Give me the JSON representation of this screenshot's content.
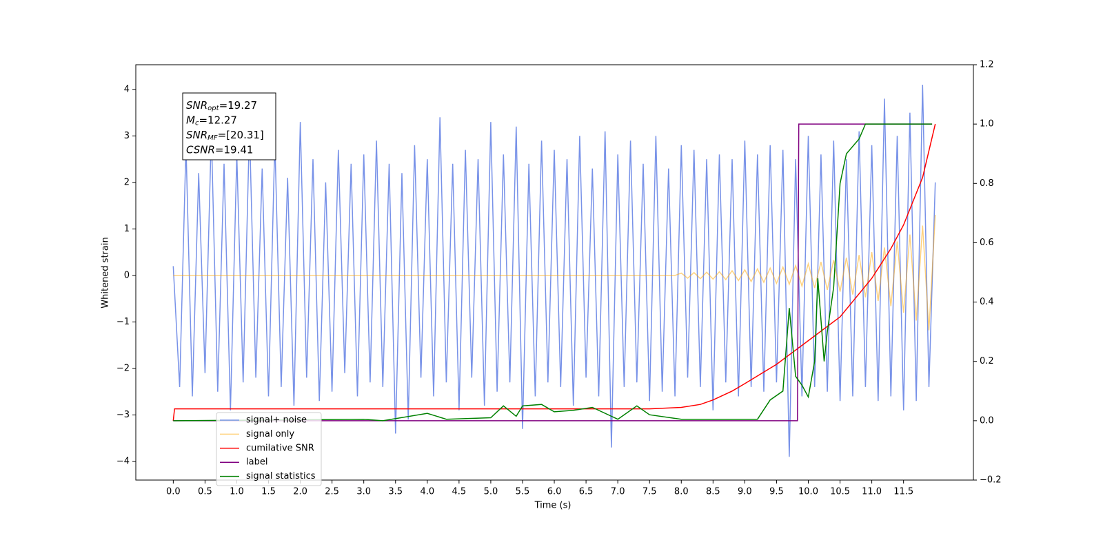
{
  "chart_data": {
    "type": "line",
    "xlabel": "Time (s)",
    "ylabel": "Whitened strain",
    "xlim": [
      -0.59,
      12.6
    ],
    "ylim": [
      -4.4,
      4.53
    ],
    "y2lim": [
      -0.2,
      1.2
    ],
    "xticks": [
      {
        "value": 0,
        "label": "0.0"
      },
      0.5,
      {
        "value": 1,
        "label": "1.0"
      },
      1.5,
      {
        "value": 2,
        "label": "2.0"
      },
      2.5,
      {
        "value": 3,
        "label": "3.0"
      },
      3.5,
      {
        "value": 4,
        "label": "4.0"
      },
      4.5,
      {
        "value": 5,
        "label": "5.0"
      },
      5.5,
      {
        "value": 6,
        "label": "6.0"
      },
      6.5,
      {
        "value": 7,
        "label": "7.0"
      },
      7.5,
      {
        "value": 8,
        "label": "8.0"
      },
      8.5,
      {
        "value": 9,
        "label": "9.0"
      },
      9.5,
      {
        "value": 10,
        "label": "10.0"
      },
      10.5,
      {
        "value": 11,
        "label": "11.0"
      },
      11.5
    ],
    "yticks": [
      {
        "value": -4,
        "label": "−4"
      },
      {
        "value": -3,
        "label": "−3"
      },
      {
        "value": -2,
        "label": "−2"
      },
      {
        "value": -1,
        "label": "−1"
      },
      0,
      1,
      2,
      3,
      4
    ],
    "y2ticks": [
      {
        "value": -0.2,
        "label": "−0.2"
      },
      {
        "value": 0,
        "label": "0.0"
      },
      0.2,
      0.4,
      0.6,
      0.8,
      {
        "value": 1,
        "label": "1.0"
      },
      1.2
    ],
    "legend": "lower left",
    "annotation": [
      {
        "base": "SNR",
        "sub": "opt",
        "text": "=19.27"
      },
      {
        "base": "M",
        "sub": "c",
        "text": "=12.27"
      },
      {
        "base": "SNR",
        "sub": "MF",
        "text": "=[20.31]"
      },
      {
        "base": "CSNR",
        "text": "=19.41"
      }
    ],
    "series": [
      {
        "name": "signal+ noise",
        "color": "#7892e8",
        "opacity": 1,
        "x": [
          0,
          0.1,
          0.2,
          0.3,
          0.4,
          0.5,
          0.6,
          0.7,
          0.8,
          0.9,
          1,
          1.1,
          1.2,
          1.3,
          1.4,
          1.5,
          1.6,
          1.7,
          1.8,
          1.9,
          2,
          2.1,
          2.2,
          2.3,
          2.4,
          2.5,
          2.6,
          2.7,
          2.8,
          2.9,
          3,
          3.1,
          3.2,
          3.3,
          3.4,
          3.5,
          3.6,
          3.7,
          3.8,
          3.9,
          4,
          4.1,
          4.2,
          4.3,
          4.4,
          4.5,
          4.6,
          4.7,
          4.8,
          4.9,
          5,
          5.1,
          5.2,
          5.3,
          5.4,
          5.5,
          5.6,
          5.7,
          5.8,
          5.9,
          6,
          6.1,
          6.2,
          6.3,
          6.4,
          6.5,
          6.6,
          6.7,
          6.8,
          6.9,
          7,
          7.1,
          7.2,
          7.3,
          7.4,
          7.5,
          7.6,
          7.7,
          7.8,
          7.9,
          8,
          8.1,
          8.2,
          8.3,
          8.4,
          8.5,
          8.6,
          8.7,
          8.8,
          8.9,
          9,
          9.1,
          9.2,
          9.3,
          9.4,
          9.5,
          9.6,
          9.7,
          9.8,
          9.9,
          10,
          10.1,
          10.2,
          10.3,
          10.4,
          10.5,
          10.6,
          10.7,
          10.8,
          10.9,
          11,
          11.1,
          11.2,
          11.3,
          11.4,
          11.5,
          11.6,
          11.7,
          11.8,
          11.9,
          12
        ],
        "values": [
          0.2,
          -2.4,
          2.8,
          -2.6,
          2.2,
          -2.1,
          3.1,
          -2.5,
          2.4,
          -2.9,
          2.6,
          -2.3,
          3.2,
          -2.2,
          2.3,
          -2.6,
          2.9,
          -2.4,
          2.1,
          -2.8,
          3.3,
          -2.2,
          2.5,
          -2.7,
          2.0,
          -2.5,
          2.7,
          -2.1,
          2.4,
          -2.6,
          2.6,
          -2.3,
          2.9,
          -2.4,
          2.4,
          -3.4,
          2.2,
          -3.1,
          2.8,
          -2.2,
          2.5,
          -2.6,
          3.4,
          -2.3,
          2.4,
          -2.9,
          2.7,
          -2.2,
          2.5,
          -2.8,
          3.3,
          -2.5,
          2.6,
          -2.3,
          3.2,
          -3.3,
          2.4,
          -2.6,
          2.9,
          -2.3,
          2.7,
          -2.4,
          2.5,
          -2.8,
          3.0,
          -2.2,
          2.3,
          -2.6,
          3.1,
          -3.7,
          2.6,
          -2.4,
          2.9,
          -2.3,
          2.4,
          -2.7,
          3.0,
          -2.5,
          2.3,
          -2.6,
          2.8,
          -2.2,
          2.7,
          -2.4,
          2.5,
          -2.9,
          2.6,
          -2.3,
          2.5,
          -2.6,
          2.9,
          -2.4,
          2.6,
          -2.5,
          2.8,
          -2.3,
          2.7,
          -3.9,
          2.5,
          -2.6,
          3.0,
          -2.4,
          2.6,
          -2.5,
          2.9,
          -2.7,
          2.5,
          -2.6,
          3.1,
          -2.4,
          2.8,
          -2.7,
          3.8,
          -2.6,
          3.0,
          -2.9,
          3.5,
          -2.7,
          4.1,
          -2.4,
          2.0
        ]
      },
      {
        "name": "signal only",
        "color": "#ffa500",
        "opacity": 0.5,
        "x": [
          0,
          7.9,
          8,
          8.1,
          8.2,
          8.3,
          8.4,
          8.5,
          8.6,
          8.7,
          8.8,
          8.9,
          9,
          9.1,
          9.2,
          9.3,
          9.4,
          9.5,
          9.6,
          9.7,
          9.8,
          9.9,
          10,
          10.1,
          10.2,
          10.3,
          10.4,
          10.5,
          10.6,
          10.7,
          10.8,
          10.9,
          11,
          11.1,
          11.2,
          11.3,
          11.4,
          11.5,
          11.6,
          11.7,
          11.8,
          11.9,
          12
        ],
        "values": [
          0,
          0,
          0.05,
          -0.06,
          0.06,
          -0.07,
          0.07,
          -0.08,
          0.08,
          -0.09,
          0.1,
          -0.11,
          0.12,
          -0.13,
          0.14,
          -0.15,
          0.16,
          -0.17,
          0.18,
          -0.19,
          0.21,
          -0.23,
          0.25,
          -0.27,
          0.29,
          -0.31,
          0.33,
          -0.35,
          0.38,
          -0.41,
          0.44,
          -0.47,
          0.5,
          -0.55,
          0.6,
          -0.66,
          0.73,
          -0.8,
          0.88,
          -0.97,
          1.07,
          -1.18,
          1.3
        ]
      },
      {
        "name": "cumilative SNR",
        "color": "#ff0000",
        "opacity": 1,
        "axis": "y2",
        "x": [
          0,
          0.02,
          7.5,
          8,
          8.3,
          8.5,
          8.8,
          9,
          9.5,
          10,
          10.5,
          11,
          11.3,
          11.5,
          11.8,
          12
        ],
        "values": [
          0,
          0.04,
          0.04,
          0.045,
          0.055,
          0.07,
          0.1,
          0.125,
          0.19,
          0.27,
          0.35,
          0.48,
          0.58,
          0.66,
          0.82,
          1.0
        ]
      },
      {
        "name": "label",
        "color": "#800080",
        "opacity": 1,
        "axis": "y2",
        "x": [
          0,
          9.83,
          9.85,
          11.95
        ],
        "values": [
          0,
          0,
          1,
          1
        ]
      },
      {
        "name": "signal statistics",
        "color": "#008000",
        "opacity": 1,
        "axis": "y2",
        "x": [
          0,
          3,
          3.3,
          4,
          4.3,
          5,
          5.2,
          5.4,
          5.5,
          5.8,
          6,
          6.3,
          6.6,
          7,
          7.3,
          7.5,
          8,
          9.2,
          9.4,
          9.6,
          9.7,
          9.8,
          9.9,
          10,
          10.1,
          10.15,
          10.25,
          10.3,
          10.4,
          10.5,
          10.6,
          10.8,
          10.9,
          11.95
        ],
        "values": [
          0,
          0.005,
          0,
          0.025,
          0.005,
          0.01,
          0.05,
          0.015,
          0.05,
          0.055,
          0.03,
          0.035,
          0.045,
          0.005,
          0.05,
          0.02,
          0.005,
          0.005,
          0.07,
          0.1,
          0.38,
          0.15,
          0.12,
          0.08,
          0.2,
          0.48,
          0.2,
          0.3,
          0.45,
          0.8,
          0.9,
          0.95,
          1.0,
          1.0
        ]
      }
    ]
  }
}
